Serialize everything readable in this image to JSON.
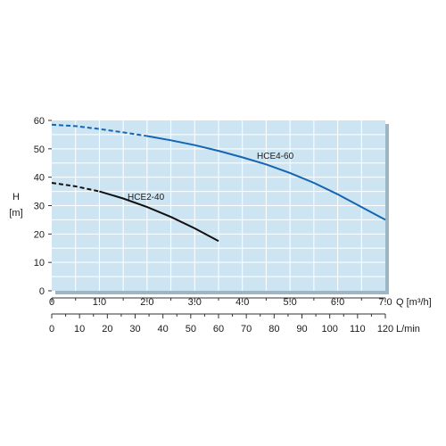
{
  "chart_data": {
    "type": "line",
    "y_axis": {
      "label_line1": "H",
      "label_line2": "[m]",
      "range": [
        0,
        60
      ],
      "ticks": [
        "0",
        "10",
        "20",
        "30",
        "40",
        "50",
        "60"
      ]
    },
    "x_axis": {
      "label": "Q [m³/h]",
      "range": [
        0,
        7
      ],
      "ticks": [
        "0",
        "1.0",
        "2.0",
        "3.0",
        "4.0",
        "5.0",
        "6.0",
        "7.0"
      ]
    },
    "x2_axis": {
      "label": "L/min",
      "range": [
        0,
        120
      ],
      "ticks": [
        "0",
        "10",
        "20",
        "30",
        "40",
        "50",
        "60",
        "70",
        "80",
        "90",
        "100",
        "110",
        "120"
      ]
    },
    "grid": true,
    "plot_background": "#cde5f3",
    "grid_color": "#ffffff",
    "series": [
      {
        "name": "HCE4-60",
        "color": "#1565b0",
        "dashed_until_x": 2.0,
        "x": [
          0,
          0.5,
          1.0,
          1.5,
          2.0,
          2.5,
          3.0,
          3.5,
          4.0,
          4.5,
          5.0,
          5.5,
          6.0,
          6.5,
          7.0
        ],
        "y": [
          58.5,
          58.0,
          57.0,
          55.8,
          54.5,
          53.0,
          51.3,
          49.3,
          47.0,
          44.5,
          41.5,
          38.0,
          34.0,
          29.5,
          25.0
        ]
      },
      {
        "name": "HCE2-40",
        "color": "#111111",
        "dashed_until_x": 1.0,
        "x": [
          0,
          0.5,
          1.0,
          1.5,
          2.0,
          2.5,
          3.0,
          3.5
        ],
        "y": [
          38.0,
          36.8,
          35.0,
          32.5,
          29.5,
          26.0,
          22.0,
          17.5
        ]
      }
    ]
  }
}
